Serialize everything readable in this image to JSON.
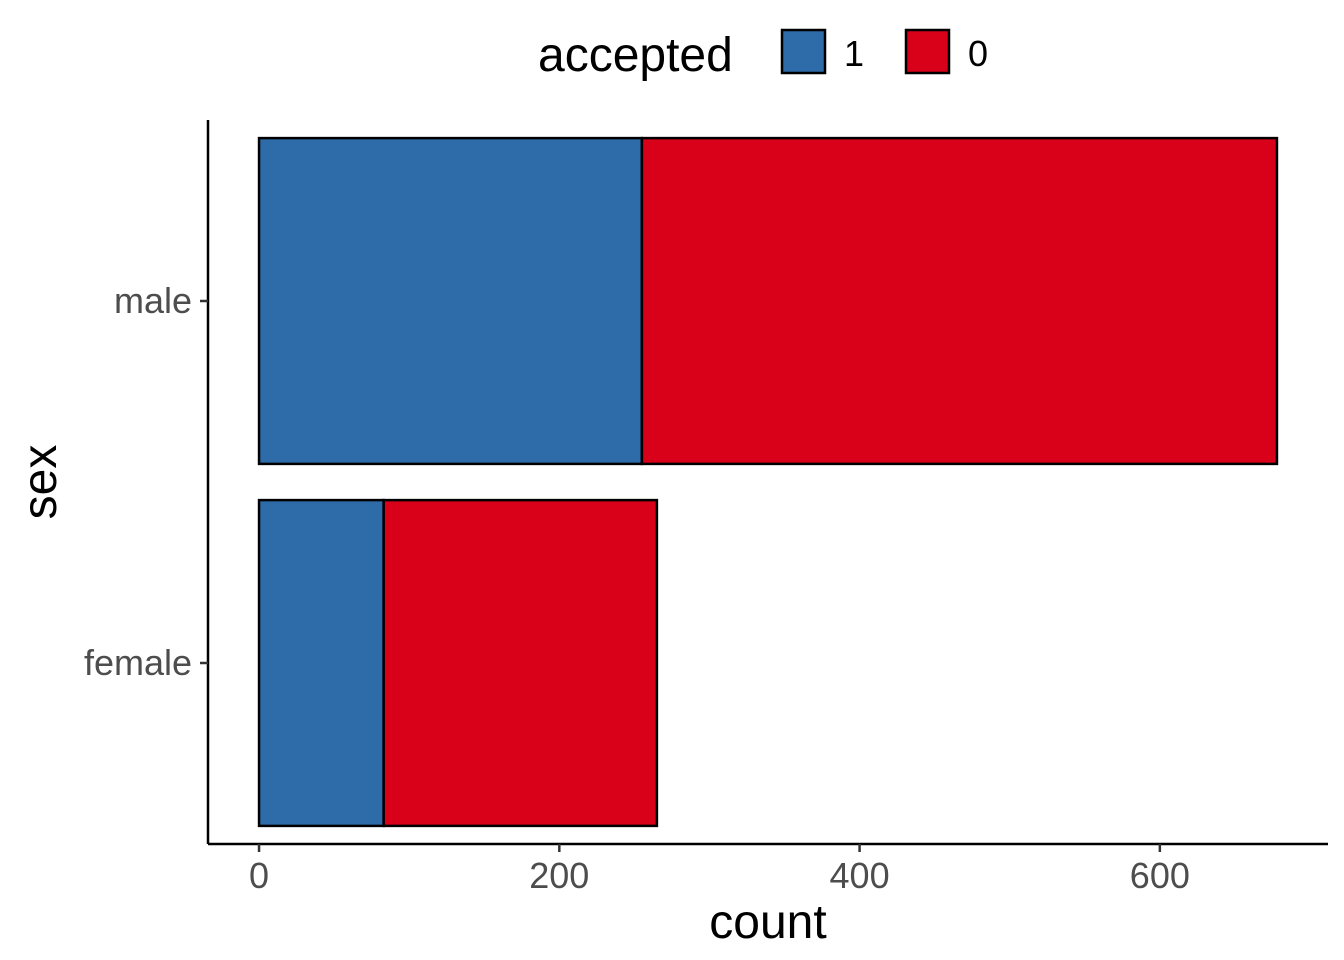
{
  "chart_data": {
    "type": "bar",
    "orientation": "horizontal",
    "stacked": true,
    "categories": [
      "male",
      "female"
    ],
    "series": [
      {
        "name": "1",
        "values": [
          255,
          83
        ],
        "color": "#2E6BA9"
      },
      {
        "name": "0",
        "values": [
          423,
          182
        ],
        "color": "#D9001A"
      }
    ],
    "xlabel": "count",
    "ylabel": "sex",
    "xlim": [
      -34,
      712
    ],
    "xticks": [
      0,
      200,
      400,
      600
    ],
    "legend": {
      "title": "accepted",
      "position": "top"
    },
    "grid": false
  }
}
